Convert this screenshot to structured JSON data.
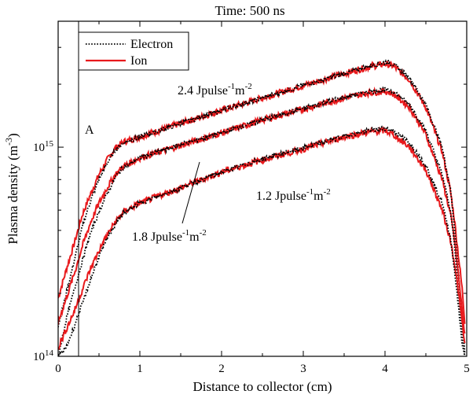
{
  "chart_data": {
    "type": "line",
    "title": "Time: 500 ns",
    "xlabel": "Distance to collector (cm)",
    "ylabel": "Plasma density (m^-3)",
    "ylabel_base": "Plasma density (m",
    "ylabel_exp": "-3",
    "ylabel_close": ")",
    "xlim": [
      0,
      5
    ],
    "ylim": [
      100000000000000.0,
      4000000000000000.0
    ],
    "yscale": "log",
    "grid": false,
    "legend_position": "top-left",
    "x_ticks": [
      "0",
      "1",
      "2",
      "3",
      "4",
      "5"
    ],
    "y_ticks": [
      {
        "value": 1000000000000000.0,
        "base": "10",
        "exp": "15"
      },
      {
        "value": 100000000000000.0,
        "base": "10",
        "exp": "14"
      }
    ],
    "legend": [
      {
        "label": "Electron",
        "style": "dotted",
        "color": "#000000"
      },
      {
        "label": "Ion",
        "style": "solid",
        "color": "#e8191c"
      }
    ],
    "marker_line": {
      "x": 0.25,
      "label": "A"
    },
    "x": [
      0,
      0.1,
      0.2,
      0.3,
      0.4,
      0.5,
      0.6,
      0.7,
      0.8,
      1.0,
      1.5,
      2.0,
      2.5,
      3.0,
      3.5,
      3.8,
      4.0,
      4.1,
      4.3,
      4.5,
      4.7,
      4.8,
      4.85,
      4.9,
      4.95,
      4.98
    ],
    "series": [
      {
        "fluence": "2.4 Jpulse^-1m^-2",
        "ion": [
          190000000000000.0,
          260000000000000.0,
          350000000000000.0,
          480000000000000.0,
          600000000000000.0,
          740000000000000.0,
          870000000000000.0,
          990000000000000.0,
          1060000000000000.0,
          1120000000000000.0,
          1300000000000000.0,
          1500000000000000.0,
          1720000000000000.0,
          1970000000000000.0,
          2250000000000000.0,
          2420000000000000.0,
          2500000000000000.0,
          2450000000000000.0,
          2100000000000000.0,
          1550000000000000.0,
          950000000000000.0,
          620000000000000.0,
          450000000000000.0,
          300000000000000.0,
          200000000000000.0,
          140000000000000.0
        ],
        "electron": [
          140000000000000.0,
          200000000000000.0,
          290000000000000.0,
          420000000000000.0,
          560000000000000.0,
          700000000000000.0,
          840000000000000.0,
          970000000000000.0,
          1050000000000000.0,
          1120000000000000.0,
          1300000000000000.0,
          1500000000000000.0,
          1720000000000000.0,
          1970000000000000.0,
          2250000000000000.0,
          2440000000000000.0,
          2550000000000000.0,
          2500000000000000.0,
          2150000000000000.0,
          1600000000000000.0,
          1000000000000000.0,
          630000000000000.0,
          420000000000000.0,
          250000000000000.0,
          140000000000000.0,
          100000000000000.0
        ]
      },
      {
        "fluence": "1.8 Jpulse^-1m^-2",
        "ion": [
          145000000000000.0,
          190000000000000.0,
          250000000000000.0,
          340000000000000.0,
          440000000000000.0,
          540000000000000.0,
          640000000000000.0,
          740000000000000.0,
          810000000000000.0,
          890000000000000.0,
          1020000000000000.0,
          1170000000000000.0,
          1350000000000000.0,
          1520000000000000.0,
          1720000000000000.0,
          1820000000000000.0,
          1850000000000000.0,
          1800000000000000.0,
          1550000000000000.0,
          1150000000000000.0,
          700000000000000.0,
          480000000000000.0,
          360000000000000.0,
          240000000000000.0,
          160000000000000.0,
          120000000000000.0
        ],
        "electron": [
          100000000000000.0,
          150000000000000.0,
          210000000000000.0,
          290000000000000.0,
          390000000000000.0,
          490000000000000.0,
          600000000000000.0,
          720000000000000.0,
          800000000000000.0,
          890000000000000.0,
          1030000000000000.0,
          1170000000000000.0,
          1350000000000000.0,
          1530000000000000.0,
          1730000000000000.0,
          1840000000000000.0,
          1880000000000000.0,
          1850000000000000.0,
          1600000000000000.0,
          1200000000000000.0,
          740000000000000.0,
          500000000000000.0,
          340000000000000.0,
          200000000000000.0,
          120000000000000.0,
          100000000000000.0
        ]
      },
      {
        "fluence": "1.2 Jpulse^-1m^-2",
        "ion": [
          110000000000000.0,
          135000000000000.0,
          165000000000000.0,
          210000000000000.0,
          265000000000000.0,
          320000000000000.0,
          380000000000000.0,
          440000000000000.0,
          490000000000000.0,
          540000000000000.0,
          640000000000000.0,
          760000000000000.0,
          870000000000000.0,
          980000000000000.0,
          1120000000000000.0,
          1180000000000000.0,
          1200000000000000.0,
          1150000000000000.0,
          1000000000000000.0,
          780000000000000.0,
          500000000000000.0,
          360000000000000.0,
          280000000000000.0,
          200000000000000.0,
          140000000000000.0,
          110000000000000.0
        ],
        "electron": [
          100000000000000.0,
          110000000000000.0,
          140000000000000.0,
          180000000000000.0,
          235000000000000.0,
          300000000000000.0,
          365000000000000.0,
          430000000000000.0,
          485000000000000.0,
          540000000000000.0,
          640000000000000.0,
          760000000000000.0,
          880000000000000.0,
          990000000000000.0,
          1130000000000000.0,
          1200000000000000.0,
          1230000000000000.0,
          1200000000000000.0,
          1050000000000000.0,
          820000000000000.0,
          540000000000000.0,
          370000000000000.0,
          260000000000000.0,
          170000000000000.0,
          110000000000000.0,
          100000000000000.0
        ]
      }
    ],
    "annotations": [
      {
        "id": "ann-24",
        "base": "2.4 Jpulse",
        "exp1": "-1",
        "mid": "m",
        "exp2": "-2"
      },
      {
        "id": "ann-18",
        "base": "1.8 Jpulse",
        "exp1": "-1",
        "mid": "m",
        "exp2": "-2"
      },
      {
        "id": "ann-12",
        "base": "1.2 Jpulse",
        "exp1": "-1",
        "mid": "m",
        "exp2": "-2"
      }
    ]
  }
}
